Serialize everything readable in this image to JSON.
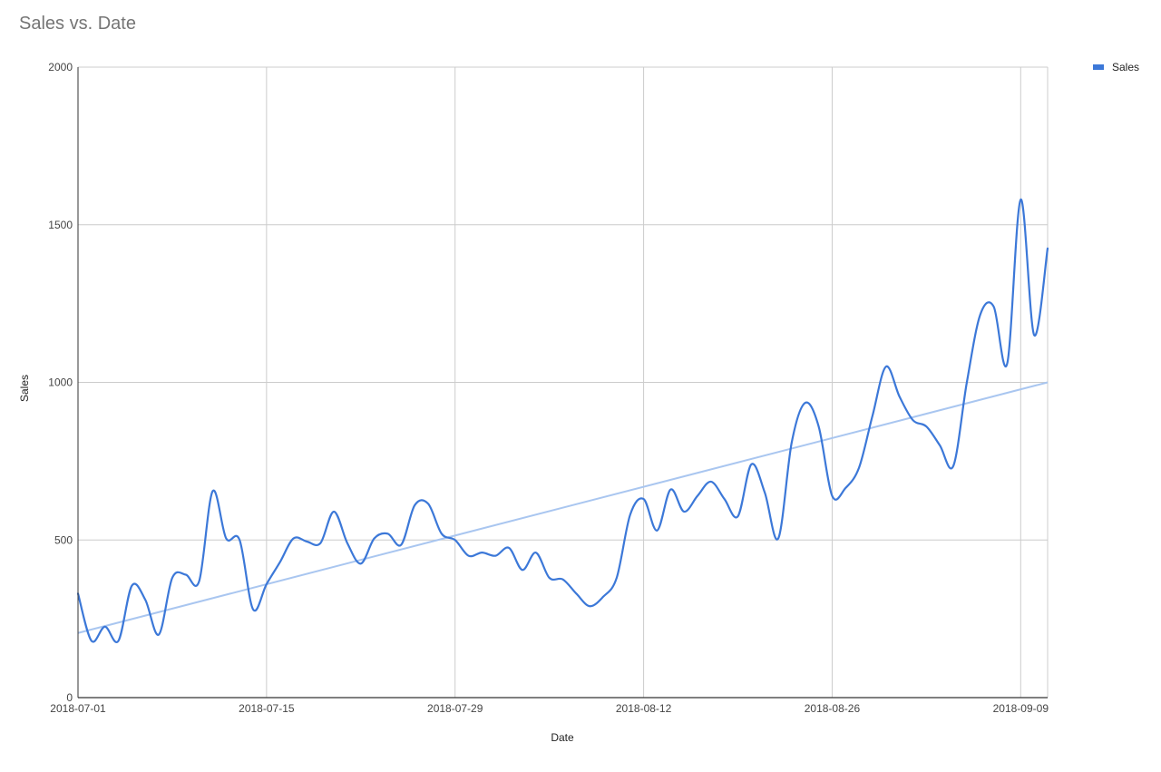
{
  "chart_data": {
    "type": "line",
    "title": "Sales vs. Date",
    "xlabel": "Date",
    "ylabel": "Sales",
    "ylim": [
      0,
      2000
    ],
    "yticks": [
      "0",
      "500",
      "1000",
      "1500",
      "2000"
    ],
    "xticks": [
      "2018-07-01",
      "2018-07-15",
      "2018-07-29",
      "2018-08-12",
      "2018-08-26",
      "2018-09-09"
    ],
    "x_range": [
      "2018-07-01",
      "2018-09-11"
    ],
    "grid": true,
    "legend_position": "right",
    "series": [
      {
        "name": "Sales",
        "color": "#3c78d8",
        "x": [
          "2018-07-01",
          "2018-07-02",
          "2018-07-03",
          "2018-07-04",
          "2018-07-05",
          "2018-07-06",
          "2018-07-07",
          "2018-07-08",
          "2018-07-09",
          "2018-07-10",
          "2018-07-11",
          "2018-07-12",
          "2018-07-13",
          "2018-07-14",
          "2018-07-15",
          "2018-07-16",
          "2018-07-17",
          "2018-07-18",
          "2018-07-19",
          "2018-07-20",
          "2018-07-21",
          "2018-07-22",
          "2018-07-23",
          "2018-07-24",
          "2018-07-25",
          "2018-07-26",
          "2018-07-27",
          "2018-07-28",
          "2018-07-29",
          "2018-07-30",
          "2018-07-31",
          "2018-08-01",
          "2018-08-02",
          "2018-08-03",
          "2018-08-04",
          "2018-08-05",
          "2018-08-06",
          "2018-08-07",
          "2018-08-08",
          "2018-08-09",
          "2018-08-10",
          "2018-08-11",
          "2018-08-12",
          "2018-08-13",
          "2018-08-14",
          "2018-08-15",
          "2018-08-16",
          "2018-08-17",
          "2018-08-18",
          "2018-08-19",
          "2018-08-20",
          "2018-08-21",
          "2018-08-22",
          "2018-08-23",
          "2018-08-24",
          "2018-08-25",
          "2018-08-26",
          "2018-08-27",
          "2018-08-28",
          "2018-08-29",
          "2018-08-30",
          "2018-08-31",
          "2018-09-01",
          "2018-09-02",
          "2018-09-03",
          "2018-09-04",
          "2018-09-05",
          "2018-09-06",
          "2018-09-07",
          "2018-09-08",
          "2018-09-09",
          "2018-09-10",
          "2018-09-11"
        ],
        "values": [
          330,
          180,
          225,
          180,
          355,
          310,
          200,
          380,
          390,
          370,
          655,
          505,
          500,
          280,
          360,
          430,
          505,
          495,
          490,
          590,
          490,
          425,
          505,
          520,
          485,
          610,
          615,
          520,
          500,
          450,
          460,
          450,
          475,
          405,
          460,
          380,
          375,
          330,
          290,
          320,
          380,
          580,
          630,
          530,
          660,
          590,
          640,
          685,
          630,
          575,
          740,
          650,
          505,
          810,
          935,
          860,
          640,
          665,
          730,
          895,
          1050,
          955,
          880,
          860,
          800,
          735,
          1000,
          1215,
          1240,
          1060,
          1580,
          1150,
          1425
        ]
      }
    ],
    "trendline": {
      "color": "#a9c6f0",
      "start": [
        "2018-07-01",
        205
      ],
      "end": [
        "2018-09-11",
        1000
      ]
    }
  }
}
